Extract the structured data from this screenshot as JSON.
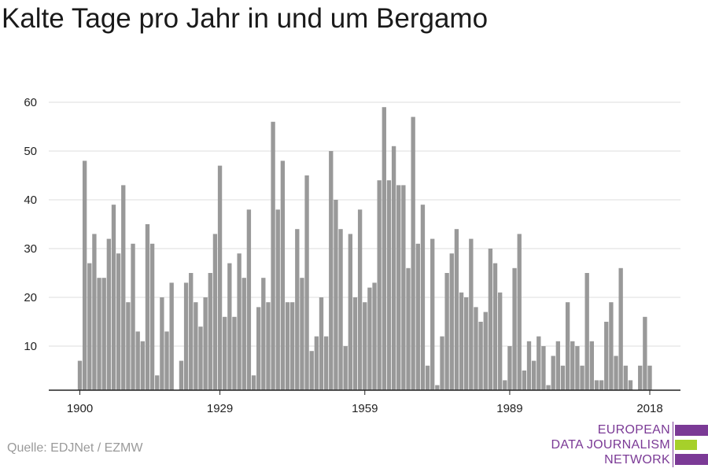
{
  "title": "Kalte Tage pro Jahr in und um Bergamo",
  "source": "Quelle: EDJNet / EZMW",
  "logo": {
    "lines": [
      "EUROPEAN",
      "DATA JOURNALISM",
      "NETWORK"
    ],
    "colors": {
      "primary": "#7b3a96",
      "accent": "#a6d02a"
    }
  },
  "chart_data": {
    "type": "bar",
    "title": "Kalte Tage pro Jahr in und um Bergamo",
    "xlabel": "",
    "ylabel": "",
    "x_start": 1900,
    "x_end": 2018,
    "x_ticks": [
      1900,
      1929,
      1959,
      1989,
      2018
    ],
    "y_ticks": [
      10,
      20,
      30,
      40,
      50,
      60
    ],
    "ylim": [
      0,
      60
    ],
    "grid": true,
    "bar_color": "#999999",
    "years": [
      1900,
      1901,
      1902,
      1903,
      1904,
      1905,
      1906,
      1907,
      1908,
      1909,
      1910,
      1911,
      1912,
      1913,
      1914,
      1915,
      1916,
      1917,
      1918,
      1919,
      1920,
      1921,
      1922,
      1923,
      1924,
      1925,
      1926,
      1927,
      1928,
      1929,
      1930,
      1931,
      1932,
      1933,
      1934,
      1935,
      1936,
      1937,
      1938,
      1939,
      1940,
      1941,
      1942,
      1943,
      1944,
      1945,
      1946,
      1947,
      1948,
      1949,
      1950,
      1951,
      1952,
      1953,
      1954,
      1955,
      1956,
      1957,
      1958,
      1959,
      1960,
      1961,
      1962,
      1963,
      1964,
      1965,
      1966,
      1967,
      1968,
      1969,
      1970,
      1971,
      1972,
      1973,
      1974,
      1975,
      1976,
      1977,
      1978,
      1979,
      1980,
      1981,
      1982,
      1983,
      1984,
      1985,
      1986,
      1987,
      1988,
      1989,
      1990,
      1991,
      1992,
      1993,
      1994,
      1995,
      1996,
      1997,
      1998,
      1999,
      2000,
      2001,
      2002,
      2003,
      2004,
      2005,
      2006,
      2007,
      2008,
      2009,
      2010,
      2011,
      2012,
      2013,
      2014,
      2015,
      2016,
      2017,
      2018
    ],
    "values": [
      7,
      48,
      27,
      33,
      24,
      24,
      32,
      39,
      29,
      43,
      19,
      31,
      13,
      11,
      35,
      31,
      4,
      20,
      13,
      23,
      0,
      7,
      23,
      25,
      19,
      14,
      20,
      25,
      33,
      47,
      16,
      27,
      16,
      29,
      24,
      38,
      4,
      18,
      24,
      19,
      56,
      38,
      48,
      19,
      19,
      34,
      24,
      45,
      9,
      12,
      20,
      12,
      50,
      40,
      34,
      10,
      33,
      20,
      38,
      19,
      22,
      23,
      44,
      59,
      44,
      51,
      43,
      43,
      26,
      57,
      31,
      39,
      6,
      32,
      2,
      12,
      25,
      29,
      34,
      21,
      20,
      32,
      18,
      15,
      17,
      30,
      27,
      21,
      3,
      10,
      26,
      33,
      5,
      11,
      7,
      12,
      10,
      2,
      8,
      11,
      6,
      19,
      11,
      10,
      6,
      25,
      11,
      3,
      3,
      15,
      19,
      8,
      26,
      6,
      3,
      0,
      6,
      16,
      6
    ]
  }
}
